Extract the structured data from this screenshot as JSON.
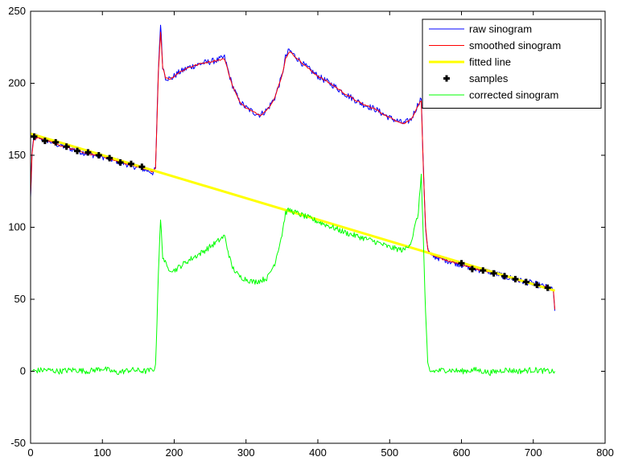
{
  "chart_data": {
    "type": "line",
    "title": "",
    "xlabel": "",
    "ylabel": "",
    "xlim": [
      0,
      800
    ],
    "ylim": [
      -50,
      250
    ],
    "xticks": [
      0,
      100,
      200,
      300,
      400,
      500,
      600,
      700,
      800
    ],
    "yticks": [
      -50,
      0,
      50,
      100,
      150,
      200,
      250
    ],
    "grid": false,
    "legend": {
      "position": "top-right"
    },
    "colors": {
      "raw": "#0000ff",
      "smoothed": "#ff0000",
      "fitted": "#ffff00",
      "samples": "#000000",
      "corrected": "#00ff00"
    },
    "series": [
      {
        "name": "raw sinogram",
        "kind": "line",
        "x": [
          0,
          2,
          4,
          8,
          20,
          40,
          60,
          80,
          100,
          120,
          140,
          160,
          170,
          174,
          176,
          178,
          181,
          184,
          188,
          195,
          205,
          220,
          240,
          260,
          270,
          280,
          290,
          300,
          310,
          320,
          330,
          340,
          350,
          355,
          360,
          370,
          380,
          400,
          420,
          440,
          460,
          480,
          500,
          520,
          530,
          540,
          544,
          547,
          550,
          553,
          556,
          560,
          580,
          600,
          620,
          640,
          660,
          680,
          700,
          720,
          728,
          730
        ],
        "y": [
          120,
          150,
          160,
          163,
          161,
          157,
          154,
          151,
          149,
          146,
          143,
          140,
          138,
          140,
          175,
          210,
          242,
          212,
          204,
          203,
          207,
          211,
          214,
          216,
          218,
          200,
          188,
          183,
          180,
          178,
          182,
          190,
          205,
          218,
          223,
          218,
          213,
          205,
          199,
          192,
          186,
          182,
          176,
          172,
          175,
          186,
          190,
          140,
          100,
          85,
          81,
          80,
          77,
          74,
          71,
          69,
          66,
          63,
          61,
          58,
          56,
          42
        ]
      },
      {
        "name": "smoothed sinogram",
        "kind": "line",
        "x": [
          0,
          2,
          4,
          8,
          20,
          40,
          60,
          80,
          100,
          120,
          140,
          160,
          170,
          174,
          176,
          178,
          181,
          184,
          188,
          195,
          205,
          220,
          240,
          260,
          270,
          280,
          290,
          300,
          310,
          320,
          330,
          340,
          350,
          355,
          360,
          370,
          380,
          400,
          420,
          440,
          460,
          480,
          500,
          520,
          530,
          540,
          544,
          547,
          550,
          553,
          556,
          560,
          580,
          600,
          620,
          640,
          660,
          680,
          700,
          720,
          728,
          730
        ],
        "y": [
          122,
          150,
          160,
          162,
          161,
          157,
          154,
          151,
          149,
          146,
          143,
          140,
          139,
          141,
          174,
          208,
          236,
          211,
          204,
          203,
          207,
          211,
          214,
          216,
          217,
          200,
          188,
          183,
          180,
          178,
          182,
          190,
          205,
          217,
          222,
          218,
          213,
          205,
          199,
          192,
          186,
          182,
          176,
          172,
          175,
          185,
          188,
          140,
          100,
          85,
          81,
          80,
          77,
          74,
          71,
          69,
          66,
          63,
          61,
          58,
          56,
          43
        ]
      },
      {
        "name": "fitted line",
        "kind": "line",
        "x": [
          0,
          730
        ],
        "y": [
          165,
          56
        ]
      },
      {
        "name": "samples",
        "kind": "marker",
        "x": [
          5,
          20,
          35,
          50,
          65,
          80,
          95,
          110,
          125,
          140,
          155,
          600,
          615,
          630,
          645,
          660,
          675,
          690,
          705,
          720
        ],
        "y": [
          163,
          160,
          159,
          156,
          153,
          152,
          150,
          148,
          145,
          144,
          142,
          75,
          71,
          70,
          68,
          66,
          64,
          62,
          60,
          58
        ]
      },
      {
        "name": "corrected sinogram",
        "kind": "line",
        "x": [
          0,
          20,
          40,
          60,
          80,
          100,
          120,
          140,
          160,
          170,
          174,
          176,
          178,
          181,
          184,
          190,
          200,
          220,
          240,
          260,
          270,
          280,
          290,
          300,
          310,
          320,
          330,
          340,
          350,
          355,
          360,
          370,
          380,
          400,
          420,
          440,
          460,
          480,
          500,
          520,
          530,
          540,
          544,
          547,
          550,
          553,
          556,
          560,
          580,
          600,
          620,
          640,
          660,
          680,
          700,
          720,
          730
        ],
        "y": [
          0,
          1,
          0,
          1,
          0,
          2,
          -1,
          1,
          0,
          1,
          3,
          35,
          70,
          105,
          80,
          72,
          70,
          77,
          83,
          90,
          94,
          73,
          66,
          64,
          62,
          63,
          65,
          75,
          95,
          110,
          112,
          110,
          108,
          104,
          100,
          96,
          93,
          90,
          86,
          84,
          90,
          110,
          137,
          90,
          40,
          5,
          0,
          0,
          1,
          0,
          1,
          -1,
          1,
          0,
          1,
          0,
          0
        ]
      }
    ]
  }
}
